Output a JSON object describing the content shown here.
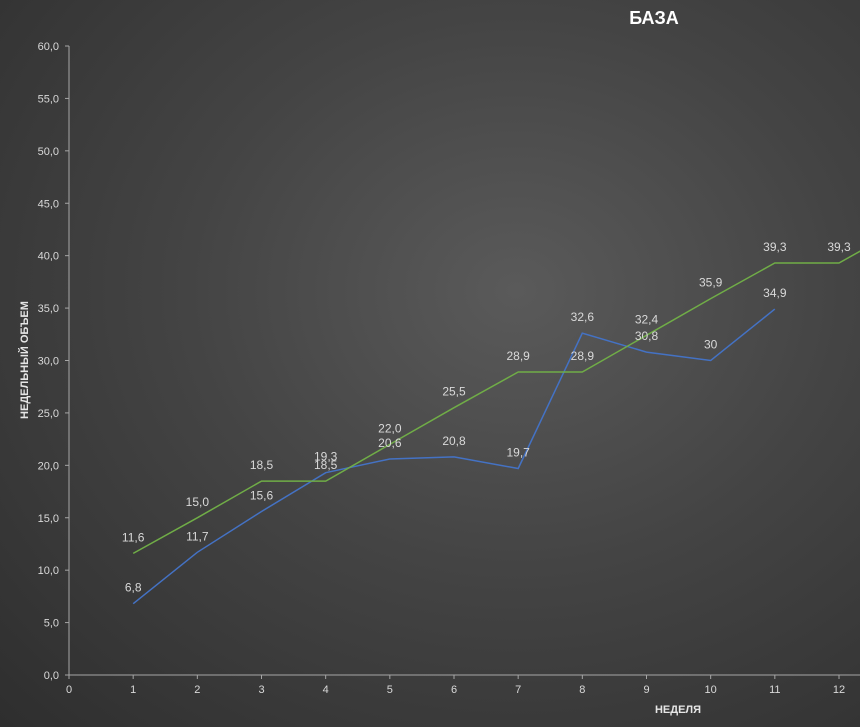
{
  "chart_data": {
    "type": "line",
    "title": "БАЗА",
    "xlabel": "НЕДЕЛЯ",
    "ylabel": "НЕДЕЛЬНЫЙ ОБЪЕМ",
    "xlim": [
      0,
      12
    ],
    "ylim": [
      0,
      60
    ],
    "x_ticks": [
      "0",
      "1",
      "2",
      "3",
      "4",
      "5",
      "6",
      "7",
      "8",
      "9",
      "10",
      "11",
      "12"
    ],
    "y_ticks": [
      "0,0",
      "5,0",
      "10,0",
      "15,0",
      "20,0",
      "25,0",
      "30,0",
      "35,0",
      "40,0",
      "45,0",
      "50,0",
      "55,0",
      "60,0"
    ],
    "grid": false,
    "series": [
      {
        "color": "#4472c4",
        "x": [
          1,
          2,
          3,
          4,
          5,
          6,
          7,
          8,
          9,
          10,
          11
        ],
        "values": [
          6.8,
          11.7,
          15.6,
          19.3,
          20.6,
          20.8,
          19.7,
          32.6,
          30.8,
          30,
          34.9
        ],
        "labels": [
          "6,8",
          "11,7",
          "15,6",
          "19,3",
          "20,6",
          "20,8",
          "19,7",
          "32,6",
          "30,8",
          "30",
          "34,9"
        ]
      },
      {
        "color": "#70ad47",
        "x": [
          1,
          2,
          3,
          4,
          5,
          6,
          7,
          8,
          9,
          10,
          11,
          12,
          12.35
        ],
        "values": [
          11.6,
          15.0,
          18.5,
          18.5,
          22.0,
          25.5,
          28.9,
          28.9,
          32.4,
          35.9,
          39.3,
          39.3,
          40.5
        ],
        "labels": [
          "11,6",
          "15,0",
          "18,5",
          "18,5",
          "22,0",
          "25,5",
          "28,9",
          "28,9",
          "32,4",
          "35,9",
          "39,3",
          "39,3",
          ""
        ]
      }
    ]
  }
}
